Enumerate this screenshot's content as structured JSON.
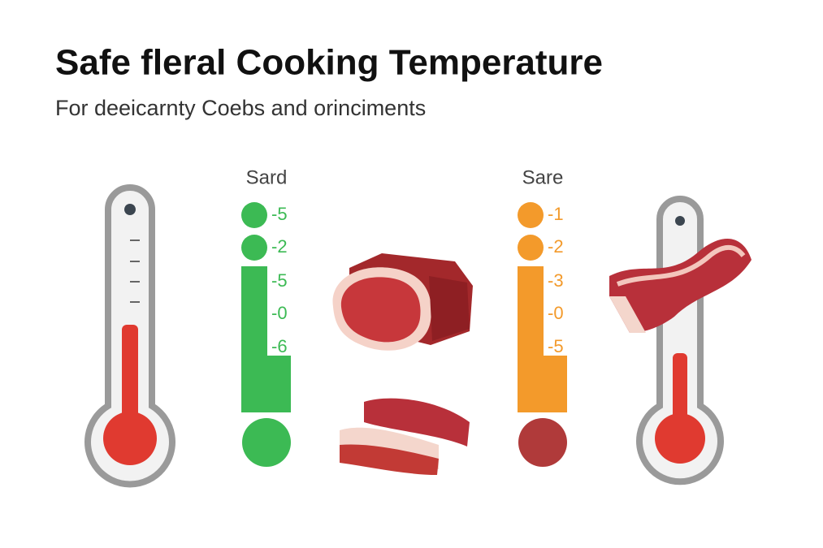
{
  "header": {
    "title": "Safe fleral Cooking Temperature",
    "subtitle": "For deeicarnty Coebs and orinciments"
  },
  "scales": [
    {
      "label": "Sard",
      "color": "#3cba54",
      "items": [
        "-5",
        "-2",
        "-5",
        "-0",
        "-6"
      ]
    },
    {
      "label": "Sare",
      "color": "#f39a2b",
      "items": [
        "-1",
        "-2",
        "-3",
        "-0",
        "-5"
      ]
    }
  ]
}
